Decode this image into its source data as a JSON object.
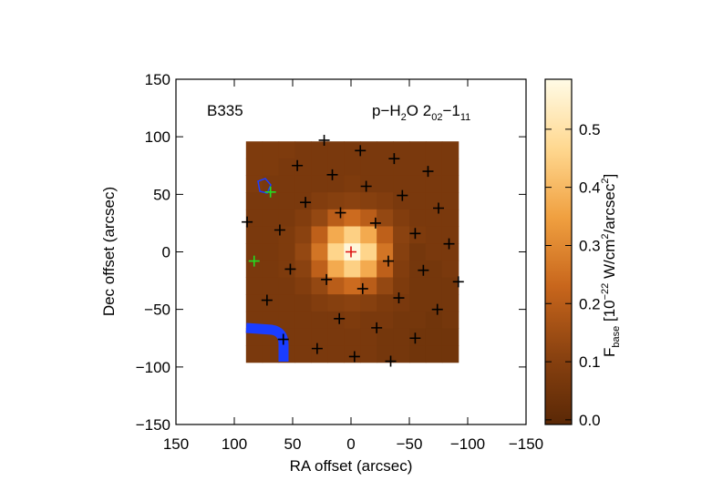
{
  "chart_data": {
    "type": "heatmap",
    "xlabel": "RA offset (arcsec)",
    "ylabel": "Dec offset (arcsec)",
    "annotations": [
      {
        "parts": [
          {
            "text": "B335"
          }
        ]
      },
      {
        "parts": [
          {
            "text": "p−H"
          },
          {
            "text": "2",
            "sub": true
          },
          {
            "text": "O 2"
          },
          {
            "text": "02",
            "sub": true
          },
          {
            "text": "−1"
          },
          {
            "text": "11",
            "sub": true
          }
        ]
      }
    ],
    "xlim": [
      150,
      -150
    ],
    "xticks": [
      150,
      100,
      50,
      0,
      {
        "value": -50,
        "label": "−50"
      },
      {
        "value": -100,
        "label": "−100"
      },
      {
        "value": -150,
        "label": "−150"
      }
    ],
    "ylim": [
      -150,
      150
    ],
    "yticks": [
      {
        "value": -150,
        "label": "−150"
      },
      {
        "value": -100,
        "label": "−100"
      },
      {
        "value": -50,
        "label": "−50"
      },
      0,
      50,
      100,
      150
    ],
    "image": {
      "x_extent": [
        90,
        -92
      ],
      "y_extent": [
        96,
        -96
      ],
      "z": [
        [
          0.08,
          0.08,
          0.08,
          0.07,
          0.07,
          0.07,
          0.07,
          0.07,
          0.07,
          0.07,
          0.07,
          0.07,
          0.07
        ],
        [
          0.08,
          0.08,
          0.07,
          0.07,
          0.07,
          0.07,
          0.07,
          0.07,
          0.07,
          0.07,
          0.07,
          0.07,
          0.07
        ],
        [
          0.08,
          0.07,
          0.07,
          0.07,
          0.07,
          0.07,
          0.08,
          0.07,
          0.07,
          0.07,
          0.07,
          0.07,
          0.07
        ],
        [
          0.07,
          0.07,
          0.07,
          0.07,
          0.09,
          0.1,
          0.11,
          0.1,
          0.09,
          0.07,
          0.07,
          0.07,
          0.07
        ],
        [
          0.07,
          0.07,
          0.07,
          0.09,
          0.13,
          0.2,
          0.24,
          0.2,
          0.13,
          0.09,
          0.07,
          0.07,
          0.07
        ],
        [
          0.07,
          0.07,
          0.08,
          0.11,
          0.21,
          0.37,
          0.45,
          0.37,
          0.21,
          0.11,
          0.08,
          0.07,
          0.07
        ],
        [
          0.07,
          0.07,
          0.08,
          0.13,
          0.26,
          0.46,
          0.57,
          0.46,
          0.26,
          0.1,
          0.06,
          0.07,
          0.07
        ],
        [
          0.07,
          0.07,
          0.08,
          0.11,
          0.21,
          0.37,
          0.45,
          0.37,
          0.21,
          0.09,
          0.06,
          0.06,
          0.07
        ],
        [
          0.07,
          0.07,
          0.07,
          0.09,
          0.13,
          0.2,
          0.24,
          0.2,
          0.13,
          0.08,
          0.06,
          0.06,
          0.06
        ],
        [
          0.07,
          0.07,
          0.07,
          0.07,
          0.09,
          0.1,
          0.11,
          0.1,
          0.08,
          0.07,
          0.06,
          0.06,
          0.06
        ],
        [
          0.07,
          0.07,
          0.07,
          0.07,
          0.07,
          0.07,
          0.08,
          0.07,
          0.07,
          0.06,
          0.06,
          0.05,
          0.06
        ],
        [
          0.07,
          0.07,
          0.07,
          0.07,
          0.07,
          0.07,
          0.07,
          0.07,
          0.06,
          0.06,
          0.05,
          0.05,
          0.05
        ],
        [
          0.07,
          0.07,
          0.07,
          0.07,
          0.07,
          0.07,
          0.07,
          0.07,
          0.06,
          0.06,
          0.05,
          0.05,
          0.05
        ]
      ]
    },
    "colormap": [
      "#5a2806",
      "#8a4210",
      "#c8661c",
      "#f0a040",
      "#ffd890",
      "#fffbe6"
    ],
    "colorbar": {
      "label": [
        {
          "text": "F"
        },
        {
          "text": "base",
          "sub": true
        },
        {
          "text": " [10"
        },
        {
          "text": "−22",
          "sup": true
        },
        {
          "text": " W/cm"
        },
        {
          "text": "2",
          "sup": true
        },
        {
          "text": "/arcsec"
        },
        {
          "text": "2",
          "sup": true
        },
        {
          "text": "]"
        }
      ],
      "clim": [
        -0.008,
        0.586
      ],
      "ticks": [
        {
          "value": 0,
          "label": "0.0"
        },
        0.1,
        0.2,
        0.3,
        0.4,
        0.5
      ]
    },
    "series": [
      {
        "color": "#000000",
        "x": [
          23,
          -8,
          46,
          -37,
          -66,
          16,
          -13,
          -44,
          39,
          -75,
          9,
          61,
          89,
          -21,
          -55,
          -84,
          -32,
          52,
          -62,
          -92,
          21,
          -10,
          -41,
          72,
          -74,
          10,
          -22,
          -55,
          58,
          29,
          -3,
          -34
        ],
        "values": [
          97,
          88,
          75,
          81,
          70,
          67,
          57,
          49,
          43,
          38,
          34,
          19,
          26,
          25,
          16,
          7,
          -8,
          -15,
          -16,
          -26,
          -24,
          -32,
          -40,
          -42,
          -50,
          -58,
          -66,
          -75,
          -76,
          -84,
          -91,
          -95
        ]
      },
      {
        "color": "#22dd22",
        "x": [
          69,
          83
        ],
        "values": [
          52,
          -8
        ]
      },
      {
        "color": "#dd1111",
        "x": [
          0
        ],
        "values": [
          0
        ]
      }
    ]
  }
}
